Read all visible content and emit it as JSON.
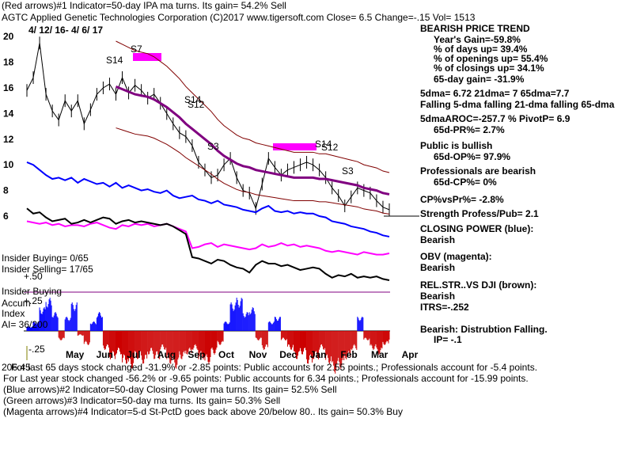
{
  "header": {
    "line1": "(Red arrows)#1 Indicator=50-day IPA ma turns. Its gain= 54.2% Sell",
    "line2": "AGTC  Applied Genetic Technologies Corporation  (C)2017 www.tigersoft.com     Close=  6.5  Change=-.15 Vol= 1513",
    "date_range": "4/ 12/ 16-  4/ 6/ 17"
  },
  "right_panel": [
    {
      "text": "BEARISH PRICE TREND",
      "bold": true
    },
    {
      "text": "Year's Gain=-59.8%",
      "bold": true,
      "indent": true
    },
    {
      "text": "% of days up= 39.4%",
      "bold": true,
      "indent": true
    },
    {
      "text": "% of openings up= 55.4%",
      "bold": true,
      "indent": true
    },
    {
      "text": "% of closings up= 34.1%",
      "bold": true,
      "indent": true
    },
    {
      "text": "65-day gain= -31.9%",
      "bold": true,
      "indent": true
    },
    {
      "text": "5dma= 6.72 21dma= 7 65dma=7.7",
      "bold": true
    },
    {
      "text": "Falling 5-dma falling 21-dma falling 65-dma",
      "bold": true
    },
    {
      "text": "5dmaAROC=-257.7 %  PivotP= 6.9",
      "bold": true
    },
    {
      "text": "65d-PR%= 2.7%",
      "bold": true,
      "indent": true
    },
    {
      "text": "Public is bullish",
      "bold": true
    },
    {
      "text": "65d-OP%= 97.9%",
      "bold": true,
      "indent": true
    },
    {
      "text": "Professionals are bearish",
      "bold": true
    },
    {
      "text": "65d-CP%= 0%",
      "bold": true,
      "indent": true
    },
    {
      "text": "CP%vsPr%= -2.8%",
      "bold": true
    },
    {
      "text": "Strength Profess/Pub= 2.1",
      "bold": true
    },
    {
      "text": "CLOSING POWER (blue):",
      "bold": true
    },
    {
      "text": "Bearish",
      "bold": true
    },
    {
      "text": "OBV (magenta):",
      "bold": true
    },
    {
      "text": "Bearish",
      "bold": true
    },
    {
      "text": "REL.STR..VS DJI (brown):",
      "bold": true
    },
    {
      "text": "Bearish",
      "bold": true
    },
    {
      "text": "ITRS=-.252",
      "bold": true
    },
    {
      "text": "Bearish: Distrubtion Falling.",
      "bold": true
    },
    {
      "text": "IP= -.1",
      "bold": true,
      "indent": true
    }
  ],
  "left_labels": {
    "insider_buying": "Insider Buying= 0/65",
    "insider_selling": "Insider Selling= 17/65",
    "plus50": "+.50",
    "insider_buying2": "Insider Buying",
    "accum": "Accum",
    "plus25": "+.25",
    "index": "Index",
    "ai": "AI= 36/200",
    "minus25": "-.25",
    "day_num": "206.45"
  },
  "signals": [
    "S14",
    "S7",
    "S12",
    "S14",
    "S3",
    "S14",
    "S12",
    "S3"
  ],
  "footer": [
    "For last 65 days stock changed -31.9% or -2.85 points:  Public accounts for  2.55 points.;  Professionals account for -5.4 points.",
    "For Last year stock changed -56.2% or -9.65 points:  Public accounts for  6.34 points.;  Professionals account for -15.99 points.",
    "(Blue arrows)#2 Indicator=50-day Closing Power ma turns. Its gain= 52.5% Sell",
    "(Green arrows)#3 Indicator=50-day ma turns. Its gain= 50.3% Sell",
    "(Magenta arrows)#4 Indicator=5-d St-PctD goes back above 20/below 80.. Its gain= 50.3% Buy"
  ],
  "colors": {
    "closing_power": "#0000ff",
    "obv": "#ff00ff",
    "rel_str": "#000000",
    "ma65": "#800080",
    "bands": "#800000",
    "ma_dotted": "#ff0000",
    "accum_pos": "#0000ff",
    "accum_neg": "#cc0000"
  },
  "chart_data": {
    "type": "line",
    "ylim": [
      5,
      20
    ],
    "y_ticks": [
      "20",
      "18",
      "16",
      "14",
      "12",
      "10",
      "8",
      "6"
    ],
    "x_ticks": [
      "May",
      "Jun",
      "Jul",
      "Aug",
      "Sep",
      "Oct",
      "Nov",
      "Dec",
      "Jan",
      "Feb",
      "Mar",
      "Apr"
    ],
    "price": [
      15.8,
      16.8,
      19.5,
      15.5,
      14.2,
      13.5,
      15.0,
      14.2,
      15.0,
      13.2,
      14.3,
      15.5,
      16.0,
      16.3,
      15.5,
      16.8,
      15.6,
      16.2,
      15.8,
      15.2,
      15.5,
      14.8,
      14.0,
      13.2,
      12.5,
      12.2,
      11.5,
      10.2,
      9.6,
      9.0,
      9.2,
      10.0,
      10.5,
      9.0,
      8.0,
      7.8,
      6.6,
      8.5,
      10.5,
      9.8,
      9.2,
      9.6,
      9.8,
      10.0,
      10.2,
      10.0,
      9.6,
      9.0,
      8.2,
      7.6,
      6.8,
      7.5,
      8.2,
      8.0,
      7.8,
      7.2,
      6.7,
      6.5
    ],
    "ma65": [
      null,
      null,
      null,
      null,
      null,
      null,
      null,
      null,
      null,
      null,
      null,
      null,
      null,
      null,
      16.1,
      15.9,
      15.7,
      15.5,
      15.4,
      15.3,
      15.1,
      14.8,
      14.5,
      14.1,
      13.7,
      13.2,
      12.8,
      12.4,
      12.0,
      11.6,
      11.1,
      10.7,
      10.4,
      10.1,
      9.9,
      9.8,
      9.6,
      9.5,
      9.4,
      9.3,
      9.2,
      9.1,
      9.0,
      9.0,
      9.0,
      9.0,
      8.9,
      8.9,
      8.8,
      8.7,
      8.6,
      8.5,
      8.4,
      8.2,
      8.1,
      8.0,
      7.8,
      7.7
    ],
    "closing_power": [
      10.2,
      10.0,
      9.6,
      9.2,
      8.9,
      9.0,
      8.8,
      9.0,
      8.6,
      8.9,
      8.7,
      8.5,
      8.6,
      8.3,
      8.6,
      8.2,
      8.4,
      8.2,
      8.0,
      8.1,
      7.9,
      7.8,
      8.0,
      7.6,
      7.4,
      7.5,
      7.6,
      7.3,
      7.2,
      7.0,
      7.2,
      6.9,
      6.8,
      6.7,
      6.5,
      6.4,
      6.3,
      6.6,
      6.8,
      6.4,
      6.3,
      6.4,
      6.2,
      6.3,
      6.2,
      6.2,
      6.0,
      5.9,
      5.6,
      5.5,
      5.4,
      5.2,
      5.1,
      5.0,
      4.8,
      4.7,
      4.5,
      4.4
    ],
    "obv": [
      5.6,
      5.5,
      5.4,
      5.5,
      5.3,
      5.4,
      5.2,
      5.3,
      5.3,
      5.2,
      5.4,
      5.5,
      5.3,
      5.1,
      5.0,
      5.3,
      5.2,
      5.4,
      5.3,
      5.4,
      5.2,
      5.3,
      5.4,
      5.2,
      5.0,
      4.8,
      3.5,
      3.6,
      3.8,
      3.9,
      3.6,
      3.8,
      3.7,
      3.6,
      3.5,
      3.4,
      3.5,
      3.8,
      3.6,
      3.7,
      3.9,
      3.7,
      3.8,
      3.6,
      3.7,
      3.6,
      3.5,
      3.3,
      3.2,
      3.3,
      3.2,
      3.1,
      3.0,
      3.2,
      3.1,
      3.0,
      3.0,
      3.1
    ],
    "rel_str": [
      6.6,
      6.2,
      6.3,
      5.9,
      5.6,
      5.7,
      5.8,
      5.4,
      5.5,
      5.7,
      5.5,
      5.7,
      5.9,
      5.8,
      5.4,
      5.6,
      5.7,
      5.5,
      5.6,
      5.5,
      5.4,
      5.3,
      5.4,
      5.2,
      4.9,
      4.6,
      2.8,
      2.7,
      2.5,
      2.3,
      2.6,
      2.5,
      2.2,
      2.0,
      1.9,
      1.6,
      2.2,
      2.5,
      2.3,
      2.3,
      2.1,
      2.2,
      2.0,
      1.8,
      1.9,
      2.0,
      1.9,
      1.5,
      1.2,
      1.4,
      1.3,
      1.5,
      1.2,
      1.3,
      1.2,
      1.3,
      1.1,
      1.0
    ],
    "accum": [
      0.05,
      0.1,
      0.25,
      0.35,
      0.2,
      -0.1,
      0.15,
      0.3,
      -0.05,
      -0.15,
      0.1,
      0.2,
      -0.2,
      -0.3,
      -0.25,
      -0.35,
      -0.4,
      -0.3,
      -0.35,
      -0.25,
      -0.3,
      -0.2,
      -0.35,
      -0.4,
      -0.3,
      -0.25,
      -0.2,
      -0.3,
      -0.35,
      -0.25,
      -0.15,
      0.1,
      0.3,
      0.35,
      0.2,
      0.25,
      -0.1,
      -0.2,
      0.1,
      0.15,
      -0.1,
      -0.2,
      -0.3,
      -0.25,
      -0.35,
      -0.3,
      -0.2,
      -0.35,
      -0.45,
      -0.4,
      -0.3,
      -0.2,
      0.15,
      -0.1,
      -0.2,
      -0.25,
      -0.15,
      -0.1
    ]
  }
}
